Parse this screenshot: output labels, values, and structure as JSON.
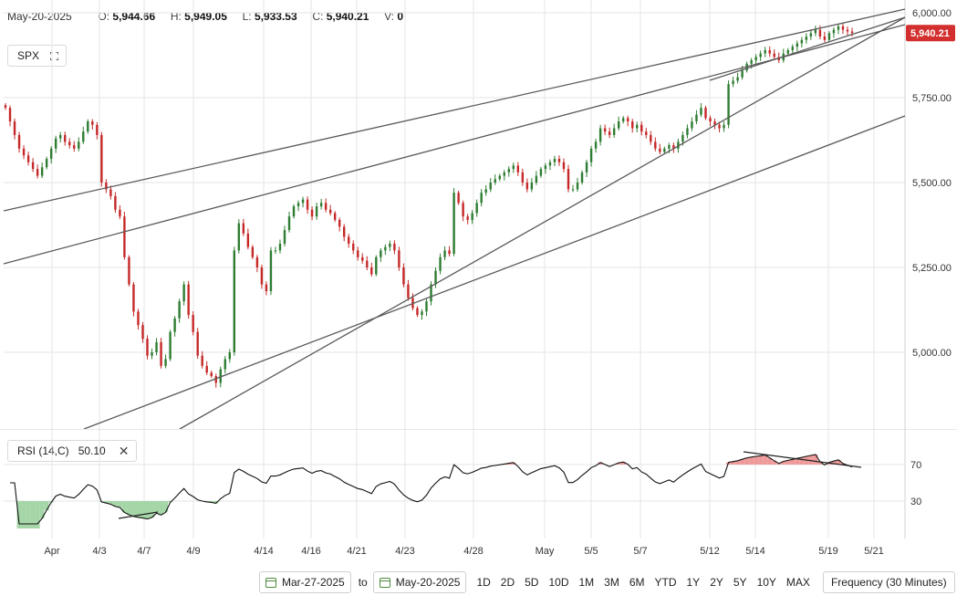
{
  "header": {
    "date": "May-20-2025",
    "open_label": "O:",
    "open": "5,944.66",
    "high_label": "H:",
    "high": "5,949.05",
    "low_label": "L:",
    "low": "5,933.53",
    "close_label": "C:",
    "close": "5,940.21",
    "volume_label": "V:",
    "volume": "0"
  },
  "symbol": "SPX",
  "last_price_tag": "5,940.21",
  "rsi": {
    "label": "RSI (14,C)",
    "value": "50.10"
  },
  "colors": {
    "up": "#2e7d32",
    "down": "#c62828",
    "tag": "#d32f2f",
    "trendline": "#5a5a5a",
    "oversold_fill": "#a5d6a7",
    "overbought_fill": "#ef9a9a",
    "grid": "#e6e6e6"
  },
  "chart_data": [
    {
      "type": "candlestick",
      "series": [
        {
          "name": "SPX",
          "interval": "30 Minutes"
        }
      ],
      "ylim": [
        4800,
        6020
      ],
      "y_ticks": [
        "6,000.00",
        "5,750.00",
        "5,500.00",
        "5,250.00",
        "5,000.00"
      ],
      "x_ticks": [
        "Apr",
        "4/3",
        "4/7",
        "4/9",
        "4/14",
        "4/16",
        "4/21",
        "4/23",
        "4/28",
        "May",
        "5/5",
        "5/7",
        "5/12",
        "5/14",
        "5/19",
        "5/21"
      ],
      "last_close": 5940.21,
      "closes_approx": [
        5720,
        5680,
        5640,
        5600,
        5580,
        5560,
        5540,
        5520,
        5545,
        5570,
        5600,
        5630,
        5640,
        5620,
        5610,
        5600,
        5620,
        5650,
        5680,
        5670,
        5640,
        5500,
        5480,
        5460,
        5420,
        5400,
        5280,
        5200,
        5120,
        5080,
        5040,
        4990,
        5000,
        5030,
        4960,
        4980,
        5060,
        5100,
        5150,
        5200,
        5110,
        5060,
        4990,
        4960,
        4940,
        4930,
        4910,
        4950,
        4980,
        5000,
        5300,
        5380,
        5350,
        5310,
        5280,
        5250,
        5200,
        5180,
        5300,
        5300,
        5320,
        5360,
        5400,
        5430,
        5440,
        5450,
        5420,
        5400,
        5430,
        5440,
        5420,
        5410,
        5390,
        5370,
        5340,
        5320,
        5300,
        5280,
        5270,
        5250,
        5230,
        5280,
        5300,
        5310,
        5320,
        5300,
        5250,
        5200,
        5160,
        5130,
        5110,
        5120,
        5150,
        5200,
        5240,
        5280,
        5300,
        5290,
        5470,
        5440,
        5400,
        5390,
        5410,
        5440,
        5470,
        5480,
        5500,
        5510,
        5520,
        5530,
        5540,
        5550,
        5530,
        5500,
        5480,
        5500,
        5520,
        5540,
        5550,
        5560,
        5570,
        5560,
        5540,
        5480,
        5480,
        5500,
        5530,
        5560,
        5600,
        5620,
        5660,
        5650,
        5640,
        5660,
        5680,
        5690,
        5680,
        5660,
        5670,
        5650,
        5640,
        5620,
        5600,
        5590,
        5600,
        5610,
        5600,
        5620,
        5640,
        5660,
        5680,
        5700,
        5720,
        5690,
        5680,
        5670,
        5660,
        5670,
        5790,
        5800,
        5810,
        5830,
        5850,
        5860,
        5870,
        5880,
        5890,
        5880,
        5870,
        5860,
        5880,
        5890,
        5900,
        5910,
        5920,
        5930,
        5940,
        5950,
        5930,
        5920,
        5940,
        5950,
        5960,
        5950,
        5945,
        5940.21
      ]
    },
    {
      "type": "line",
      "series": [
        {
          "name": "RSI (14,C)"
        }
      ],
      "ylim": [
        0,
        100
      ],
      "y_ticks": [
        "70",
        "30"
      ],
      "last": 50.1
    }
  ]
}
